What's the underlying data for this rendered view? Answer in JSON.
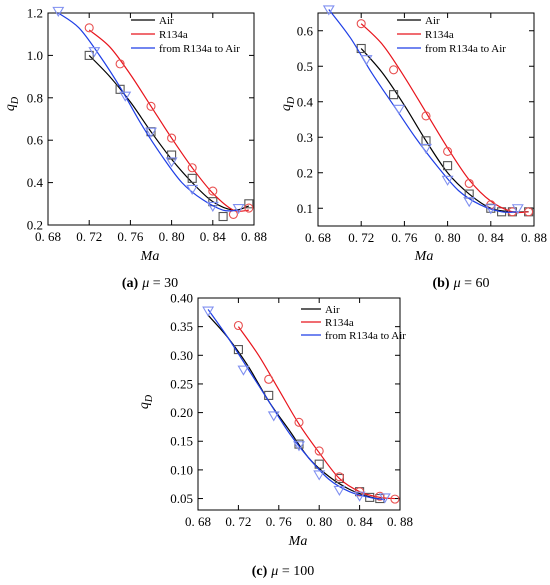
{
  "colors": {
    "air": "#000000",
    "r134a": "#e8141c",
    "transition": "#1f3fe6",
    "marker_air": "#555555",
    "marker_r134a": "#e85050",
    "marker_transition": "#7f8ff0"
  },
  "chart_data": [
    {
      "type": "line",
      "xlabel": "Ma",
      "ylabel": "qD",
      "caption": {
        "letter": "(a)",
        "mu": "μ",
        "rest": " = 30"
      },
      "xlim": [
        0.68,
        0.88
      ],
      "ylim": [
        0.2,
        1.2
      ],
      "xticks": [
        0.68,
        0.72,
        0.76,
        0.8,
        0.84,
        0.88
      ],
      "xtick_labels": [
        "0. 68",
        "0. 72",
        "0. 76",
        "0. 80",
        "0. 84",
        "0. 88"
      ],
      "yticks": [
        0.2,
        0.4,
        0.6,
        0.8,
        1.0,
        1.2
      ],
      "ytick_labels": [
        "0.2",
        "0.4",
        "0.6",
        "0.8",
        "1.0",
        "1.2"
      ],
      "legend_position": "top-right",
      "series": [
        {
          "name": "Air",
          "key": "air",
          "marker": "square",
          "curve": {
            "x": [
              0.72,
              0.74,
              0.76,
              0.78,
              0.8,
              0.82,
              0.84,
              0.86,
              0.875
            ],
            "y": [
              1.0,
              0.9,
              0.78,
              0.64,
              0.51,
              0.4,
              0.31,
              0.27,
              0.29
            ]
          },
          "points": {
            "x": [
              0.72,
              0.75,
              0.78,
              0.8,
              0.82,
              0.84,
              0.85,
              0.875
            ],
            "y": [
              1.0,
              0.84,
              0.64,
              0.53,
              0.42,
              0.31,
              0.24,
              0.3
            ]
          }
        },
        {
          "name": "R134a",
          "key": "r134a",
          "marker": "circle",
          "curve": {
            "x": [
              0.72,
              0.74,
              0.76,
              0.78,
              0.8,
              0.82,
              0.84,
              0.86,
              0.875
            ],
            "y": [
              1.12,
              1.04,
              0.91,
              0.76,
              0.61,
              0.47,
              0.35,
              0.27,
              0.27
            ]
          },
          "points": {
            "x": [
              0.72,
              0.75,
              0.78,
              0.8,
              0.82,
              0.84,
              0.86,
              0.875
            ],
            "y": [
              1.13,
              0.96,
              0.76,
              0.61,
              0.47,
              0.36,
              0.25,
              0.28
            ]
          }
        },
        {
          "name": "from R134a to Air",
          "key": "transition",
          "marker": "triangle-down",
          "curve": {
            "x": [
              0.69,
              0.71,
              0.73,
              0.75,
              0.77,
              0.79,
              0.81,
              0.83,
              0.85,
              0.865
            ],
            "y": [
              1.2,
              1.13,
              1.0,
              0.85,
              0.68,
              0.53,
              0.4,
              0.32,
              0.27,
              0.27
            ]
          },
          "points": {
            "x": [
              0.69,
              0.725,
              0.755,
              0.78,
              0.8,
              0.82,
              0.84,
              0.865
            ],
            "y": [
              1.21,
              1.02,
              0.81,
              0.64,
              0.5,
              0.37,
              0.29,
              0.28
            ]
          }
        }
      ]
    },
    {
      "type": "line",
      "xlabel": "Ma",
      "ylabel": "qD",
      "caption": {
        "letter": "(b)",
        "mu": "μ",
        "rest": " = 60"
      },
      "xlim": [
        0.68,
        0.88
      ],
      "ylim": [
        0.05,
        0.65
      ],
      "xticks": [
        0.68,
        0.72,
        0.76,
        0.8,
        0.84,
        0.88
      ],
      "xtick_labels": [
        "0. 68",
        "0. 72",
        "0. 76",
        "0. 80",
        "0. 84",
        "0. 88"
      ],
      "yticks": [
        0.1,
        0.2,
        0.3,
        0.4,
        0.5,
        0.6
      ],
      "ytick_labels": [
        "0.1",
        "0.2",
        "0.3",
        "0.4",
        "0.5",
        "0.6"
      ],
      "legend_position": "top-right",
      "series": [
        {
          "name": "Air",
          "key": "air",
          "marker": "square",
          "curve": {
            "x": [
              0.72,
              0.74,
              0.76,
              0.78,
              0.8,
              0.82,
              0.84,
              0.86,
              0.875
            ],
            "y": [
              0.55,
              0.48,
              0.39,
              0.29,
              0.2,
              0.14,
              0.1,
              0.09,
              0.09
            ]
          },
          "points": {
            "x": [
              0.72,
              0.75,
              0.78,
              0.8,
              0.82,
              0.84,
              0.85,
              0.86,
              0.875
            ],
            "y": [
              0.55,
              0.42,
              0.29,
              0.22,
              0.14,
              0.1,
              0.09,
              0.09,
              0.09
            ]
          }
        },
        {
          "name": "R134a",
          "key": "r134a",
          "marker": "circle",
          "curve": {
            "x": [
              0.72,
              0.74,
              0.76,
              0.78,
              0.8,
              0.82,
              0.84,
              0.86,
              0.875
            ],
            "y": [
              0.62,
              0.56,
              0.47,
              0.37,
              0.27,
              0.18,
              0.12,
              0.09,
              0.09
            ]
          },
          "points": {
            "x": [
              0.72,
              0.75,
              0.78,
              0.8,
              0.82,
              0.84,
              0.86,
              0.875
            ],
            "y": [
              0.62,
              0.49,
              0.36,
              0.26,
              0.17,
              0.11,
              0.09,
              0.09
            ]
          }
        },
        {
          "name": "from R134a to Air",
          "key": "transition",
          "marker": "triangle-down",
          "curve": {
            "x": [
              0.69,
              0.71,
              0.73,
              0.75,
              0.77,
              0.79,
              0.81,
              0.83,
              0.85,
              0.865
            ],
            "y": [
              0.66,
              0.58,
              0.48,
              0.39,
              0.3,
              0.22,
              0.15,
              0.11,
              0.09,
              0.09
            ]
          },
          "points": {
            "x": [
              0.69,
              0.725,
              0.755,
              0.78,
              0.8,
              0.82,
              0.84,
              0.865
            ],
            "y": [
              0.66,
              0.52,
              0.38,
              0.27,
              0.18,
              0.12,
              0.1,
              0.1
            ]
          }
        }
      ]
    },
    {
      "type": "line",
      "xlabel": "Ma",
      "ylabel": "qD",
      "caption": {
        "letter": "(c)",
        "mu": "μ",
        "rest": " = 100"
      },
      "xlim": [
        0.68,
        0.88
      ],
      "ylim": [
        0.03,
        0.4
      ],
      "xticks": [
        0.68,
        0.72,
        0.76,
        0.8,
        0.84,
        0.88
      ],
      "xtick_labels": [
        "0. 68",
        "0. 72",
        "0. 76",
        "0. 80",
        "0. 84",
        "0. 88"
      ],
      "yticks": [
        0.05,
        0.1,
        0.15,
        0.2,
        0.25,
        0.3,
        0.35,
        0.4
      ],
      "ytick_labels": [
        "0.05",
        "0.10",
        "0.15",
        "0.20",
        "0.25",
        "0.30",
        "0.35",
        "0.40"
      ],
      "legend_position": "top-right",
      "series": [
        {
          "name": "Air",
          "key": "air",
          "marker": "square",
          "curve": {
            "x": [
              0.69,
              0.71,
              0.73,
              0.75,
              0.77,
              0.79,
              0.81,
              0.83,
              0.85,
              0.865
            ],
            "y": [
              0.37,
              0.33,
              0.28,
              0.22,
              0.17,
              0.12,
              0.088,
              0.066,
              0.053,
              0.048
            ]
          },
          "points": {
            "x": [
              0.72,
              0.75,
              0.78,
              0.8,
              0.82,
              0.84,
              0.85,
              0.86
            ],
            "y": [
              0.31,
              0.23,
              0.145,
              0.11,
              0.085,
              0.062,
              0.052,
              0.05
            ]
          }
        },
        {
          "name": "R134a",
          "key": "r134a",
          "marker": "circle",
          "curve": {
            "x": [
              0.72,
              0.74,
              0.76,
              0.78,
              0.8,
              0.82,
              0.84,
              0.86,
              0.875
            ],
            "y": [
              0.35,
              0.3,
              0.24,
              0.18,
              0.13,
              0.085,
              0.062,
              0.052,
              0.05
            ]
          },
          "points": {
            "x": [
              0.72,
              0.75,
              0.78,
              0.8,
              0.82,
              0.84,
              0.86,
              0.875
            ],
            "y": [
              0.352,
              0.258,
              0.183,
              0.133,
              0.088,
              0.062,
              0.054,
              0.049
            ]
          }
        },
        {
          "name": "from R134a to Air",
          "key": "transition",
          "marker": "triangle-down",
          "curve": {
            "x": [
              0.69,
              0.71,
              0.73,
              0.75,
              0.77,
              0.79,
              0.81,
              0.83,
              0.85,
              0.865
            ],
            "y": [
              0.38,
              0.33,
              0.275,
              0.22,
              0.165,
              0.12,
              0.083,
              0.062,
              0.052,
              0.048
            ]
          },
          "points": {
            "x": [
              0.69,
              0.725,
              0.755,
              0.78,
              0.8,
              0.82,
              0.84,
              0.865
            ],
            "y": [
              0.378,
              0.275,
              0.195,
              0.143,
              0.092,
              0.065,
              0.055,
              0.052
            ]
          }
        }
      ]
    }
  ]
}
